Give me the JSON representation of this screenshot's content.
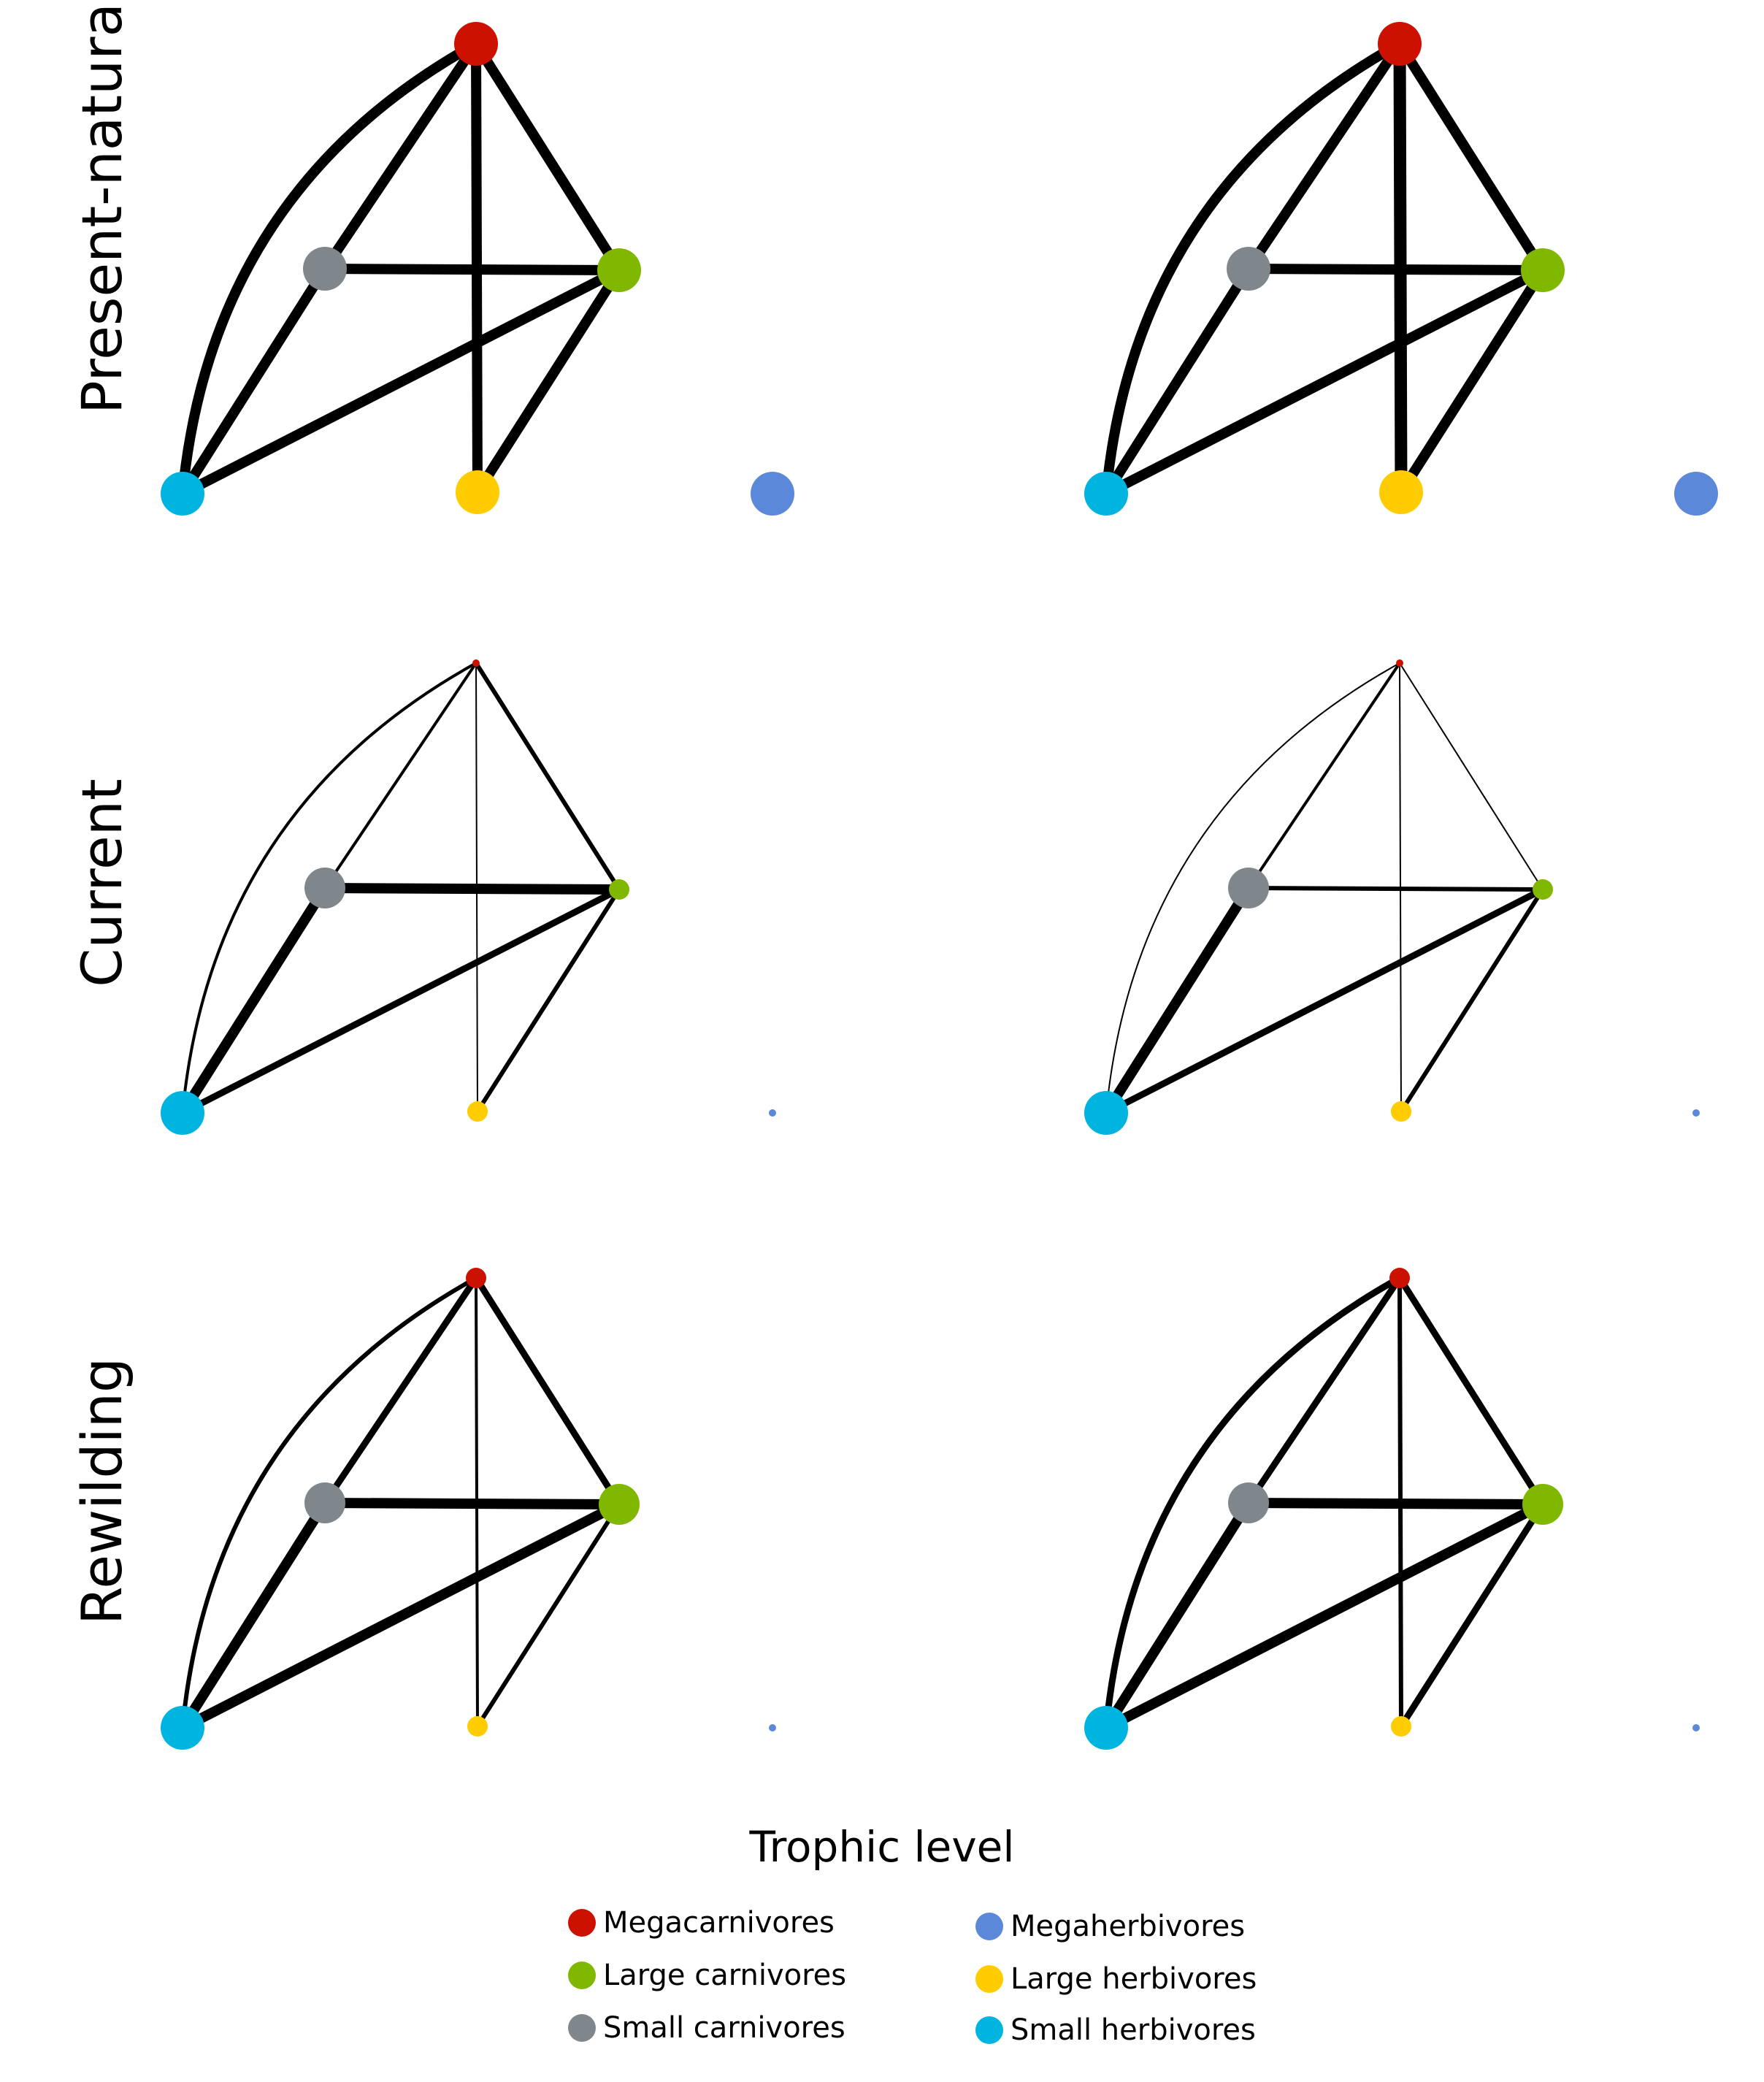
{
  "rows": [
    {
      "label": "Present-natural"
    },
    {
      "label": "Current"
    },
    {
      "label": "Rewilding"
    }
  ],
  "legend": {
    "title": "Trophic level",
    "items": [
      {
        "label": "Megacarnivores",
        "color": "#cc1100"
      },
      {
        "label": "Large carnivores",
        "color": "#80b800"
      },
      {
        "label": "Small carnivores",
        "color": "#7f878d"
      },
      {
        "label": "Megaherbivores",
        "color": "#5b88d8"
      },
      {
        "label": "Large herbivores",
        "color": "#ffcc00"
      },
      {
        "label": "Small herbivores",
        "color": "#00b4e0"
      }
    ]
  },
  "panels": [
    {
      "row": "Present-natural",
      "column": 1,
      "node_sizes": {
        "Megacarnivores": "large",
        "Large carnivores": "large",
        "Small carnivores": "large",
        "Megaherbivores": "large",
        "Large herbivores": "large",
        "Small herbivores": "large"
      },
      "links": [
        {
          "from": "Megacarnivores",
          "to": "Small herbivores",
          "weight": "heavy",
          "curved": true
        },
        {
          "from": "Megacarnivores",
          "to": "Small carnivores",
          "weight": "heavy"
        },
        {
          "from": "Megacarnivores",
          "to": "Large carnivores",
          "weight": "heavy"
        },
        {
          "from": "Megacarnivores",
          "to": "Large herbivores",
          "weight": "heavy"
        },
        {
          "from": "Small carnivores",
          "to": "Large carnivores",
          "weight": "heavy"
        },
        {
          "from": "Small carnivores",
          "to": "Small herbivores",
          "weight": "heavy"
        },
        {
          "from": "Large carnivores",
          "to": "Small herbivores",
          "weight": "heavy"
        },
        {
          "from": "Large carnivores",
          "to": "Large herbivores",
          "weight": "heavy"
        }
      ]
    },
    {
      "row": "Present-natural",
      "column": 2,
      "node_sizes": {
        "Megacarnivores": "large",
        "Large carnivores": "large",
        "Small carnivores": "large",
        "Megaherbivores": "large",
        "Large herbivores": "large",
        "Small herbivores": "large"
      },
      "links": [
        {
          "from": "Megacarnivores",
          "to": "Small herbivores",
          "weight": "heavy",
          "curved": true
        },
        {
          "from": "Megacarnivores",
          "to": "Small carnivores",
          "weight": "heavy"
        },
        {
          "from": "Megacarnivores",
          "to": "Large carnivores",
          "weight": "heavy"
        },
        {
          "from": "Megacarnivores",
          "to": "Large herbivores",
          "weight": "heaviest"
        },
        {
          "from": "Small carnivores",
          "to": "Large carnivores",
          "weight": "heavy"
        },
        {
          "from": "Small carnivores",
          "to": "Small herbivores",
          "weight": "heavy"
        },
        {
          "from": "Large carnivores",
          "to": "Small herbivores",
          "weight": "heavy"
        },
        {
          "from": "Large carnivores",
          "to": "Large herbivores",
          "weight": "heavy"
        }
      ]
    },
    {
      "row": "Current",
      "column": 1,
      "node_sizes": {
        "Megacarnivores": "tiny",
        "Large carnivores": "small",
        "Small carnivores": "medium",
        "Megaherbivores": "tiny",
        "Large herbivores": "small",
        "Small herbivores": "large"
      },
      "links": [
        {
          "from": "Megacarnivores",
          "to": "Small herbivores",
          "weight": "thin",
          "curved": true
        },
        {
          "from": "Megacarnivores",
          "to": "Small carnivores",
          "weight": "thin"
        },
        {
          "from": "Megacarnivores",
          "to": "Large carnivores",
          "weight": "light"
        },
        {
          "from": "Megacarnivores",
          "to": "Large herbivores",
          "weight": "hairline"
        },
        {
          "from": "Small carnivores",
          "to": "Large carnivores",
          "weight": "heavy"
        },
        {
          "from": "Small carnivores",
          "to": "Small herbivores",
          "weight": "heavy"
        },
        {
          "from": "Large carnivores",
          "to": "Small herbivores",
          "weight": "medium"
        },
        {
          "from": "Large carnivores",
          "to": "Large herbivores",
          "weight": "light"
        }
      ]
    },
    {
      "row": "Current",
      "column": 2,
      "node_sizes": {
        "Megacarnivores": "tiny",
        "Large carnivores": "small",
        "Small carnivores": "medium",
        "Megaherbivores": "tiny",
        "Large herbivores": "small",
        "Small herbivores": "large"
      },
      "links": [
        {
          "from": "Megacarnivores",
          "to": "Small herbivores",
          "weight": "hairline",
          "curved": true
        },
        {
          "from": "Megacarnivores",
          "to": "Small carnivores",
          "weight": "thin"
        },
        {
          "from": "Megacarnivores",
          "to": "Large carnivores",
          "weight": "hairline"
        },
        {
          "from": "Megacarnivores",
          "to": "Large herbivores",
          "weight": "hairline"
        },
        {
          "from": "Small carnivores",
          "to": "Large carnivores",
          "weight": "light"
        },
        {
          "from": "Small carnivores",
          "to": "Small herbivores",
          "weight": "heavy"
        },
        {
          "from": "Large carnivores",
          "to": "Small herbivores",
          "weight": "medium"
        },
        {
          "from": "Large carnivores",
          "to": "Large herbivores",
          "weight": "light"
        }
      ]
    },
    {
      "row": "Rewilding",
      "column": 1,
      "node_sizes": {
        "Megacarnivores": "small",
        "Large carnivores": "medium",
        "Small carnivores": "medium",
        "Megaherbivores": "tiny",
        "Large herbivores": "small",
        "Small herbivores": "large"
      },
      "links": [
        {
          "from": "Megacarnivores",
          "to": "Small herbivores",
          "weight": "light",
          "curved": true
        },
        {
          "from": "Megacarnivores",
          "to": "Small carnivores",
          "weight": "medium"
        },
        {
          "from": "Megacarnivores",
          "to": "Large carnivores",
          "weight": "medium"
        },
        {
          "from": "Megacarnivores",
          "to": "Large herbivores",
          "weight": "thin"
        },
        {
          "from": "Small carnivores",
          "to": "Large carnivores",
          "weight": "heavy"
        },
        {
          "from": "Small carnivores",
          "to": "Small herbivores",
          "weight": "heavy"
        },
        {
          "from": "Large carnivores",
          "to": "Small herbivores",
          "weight": "heavy"
        },
        {
          "from": "Large carnivores",
          "to": "Large herbivores",
          "weight": "light"
        }
      ]
    },
    {
      "row": "Rewilding",
      "column": 2,
      "node_sizes": {
        "Megacarnivores": "small",
        "Large carnivores": "medium",
        "Small carnivores": "medium",
        "Megaherbivores": "tiny",
        "Large herbivores": "small",
        "Small herbivores": "large"
      },
      "links": [
        {
          "from": "Megacarnivores",
          "to": "Small herbivores",
          "weight": "medium",
          "curved": true
        },
        {
          "from": "Megacarnivores",
          "to": "Small carnivores",
          "weight": "medium"
        },
        {
          "from": "Megacarnivores",
          "to": "Large carnivores",
          "weight": "medium"
        },
        {
          "from": "Megacarnivores",
          "to": "Large herbivores",
          "weight": "light"
        },
        {
          "from": "Small carnivores",
          "to": "Large carnivores",
          "weight": "heavy"
        },
        {
          "from": "Small carnivores",
          "to": "Small herbivores",
          "weight": "heavy"
        },
        {
          "from": "Large carnivores",
          "to": "Small herbivores",
          "weight": "heavy"
        },
        {
          "from": "Large carnivores",
          "to": "Large herbivores",
          "weight": "medium"
        }
      ]
    }
  ]
}
